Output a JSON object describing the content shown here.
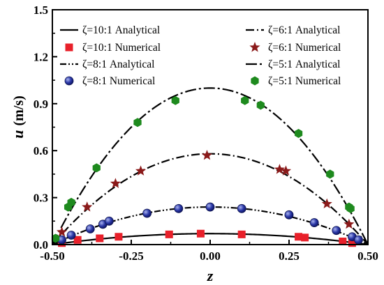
{
  "chart_data": {
    "type": "line",
    "xlabel": "z",
    "ylabel_var": "u",
    "ylabel_unit": "(m/s)",
    "xlim": [
      -0.5,
      0.5
    ],
    "ylim": [
      0,
      1.5
    ],
    "x_ticks": [
      "-0.50",
      "-0.25",
      "0.00",
      "0.25",
      "0.50"
    ],
    "y_ticks": [
      "0.0",
      "0.3",
      "0.6",
      "0.9",
      "1.2",
      "1.5"
    ],
    "grid": false,
    "legend_placement": "top, two columns",
    "series": [
      {
        "name": "ζ=10:1 Analytical",
        "kind": "line",
        "style": "solid",
        "color": "#000000",
        "peak": 0.07
      },
      {
        "name": "ζ=10:1 Numerical",
        "kind": "marker",
        "marker": "square",
        "color": "#e8202a",
        "x": [
          -0.47,
          -0.42,
          -0.35,
          -0.29,
          -0.13,
          -0.03,
          0.1,
          0.28,
          0.3,
          0.42,
          0.45
        ],
        "y": [
          0.01,
          0.03,
          0.04,
          0.05,
          0.065,
          0.07,
          0.065,
          0.05,
          0.045,
          0.02,
          0.01
        ]
      },
      {
        "name": "ζ=8:1 Analytical",
        "kind": "line",
        "style": "dash-dot-dot",
        "color": "#000000",
        "peak": 0.24
      },
      {
        "name": "ζ=8:1 Numerical",
        "kind": "marker",
        "marker": "circle",
        "color": "#1f2a8c",
        "x": [
          -0.47,
          -0.44,
          -0.38,
          -0.34,
          -0.32,
          -0.2,
          -0.1,
          0.0,
          0.1,
          0.25,
          0.33,
          0.4,
          0.45,
          0.47
        ],
        "y": [
          0.03,
          0.06,
          0.1,
          0.13,
          0.15,
          0.2,
          0.23,
          0.24,
          0.23,
          0.19,
          0.14,
          0.09,
          0.05,
          0.03
        ]
      },
      {
        "name": "ζ=6:1 Analytical",
        "kind": "line",
        "style": "dash-dot",
        "color": "#000000",
        "peak": 0.58
      },
      {
        "name": "ζ=6:1 Numerical",
        "kind": "marker",
        "marker": "star",
        "color": "#8b1a1a",
        "x": [
          -0.47,
          -0.39,
          -0.3,
          -0.22,
          -0.01,
          0.22,
          0.24,
          0.37,
          0.44
        ],
        "y": [
          0.08,
          0.24,
          0.39,
          0.47,
          0.57,
          0.48,
          0.47,
          0.26,
          0.13
        ]
      },
      {
        "name": "ζ=5:1 Analytical",
        "kind": "line",
        "style": "long-dash-dot",
        "color": "#000000",
        "peak": 1.0
      },
      {
        "name": "ζ=5:1 Numerical",
        "kind": "marker",
        "marker": "hexagon",
        "color": "#1e8a1e",
        "x": [
          -0.49,
          -0.45,
          -0.44,
          -0.36,
          -0.23,
          -0.11,
          0.11,
          0.16,
          0.28,
          0.38,
          0.44,
          0.445
        ],
        "y": [
          0.04,
          0.24,
          0.27,
          0.49,
          0.78,
          0.92,
          0.92,
          0.89,
          0.71,
          0.45,
          0.24,
          0.23
        ]
      }
    ]
  }
}
